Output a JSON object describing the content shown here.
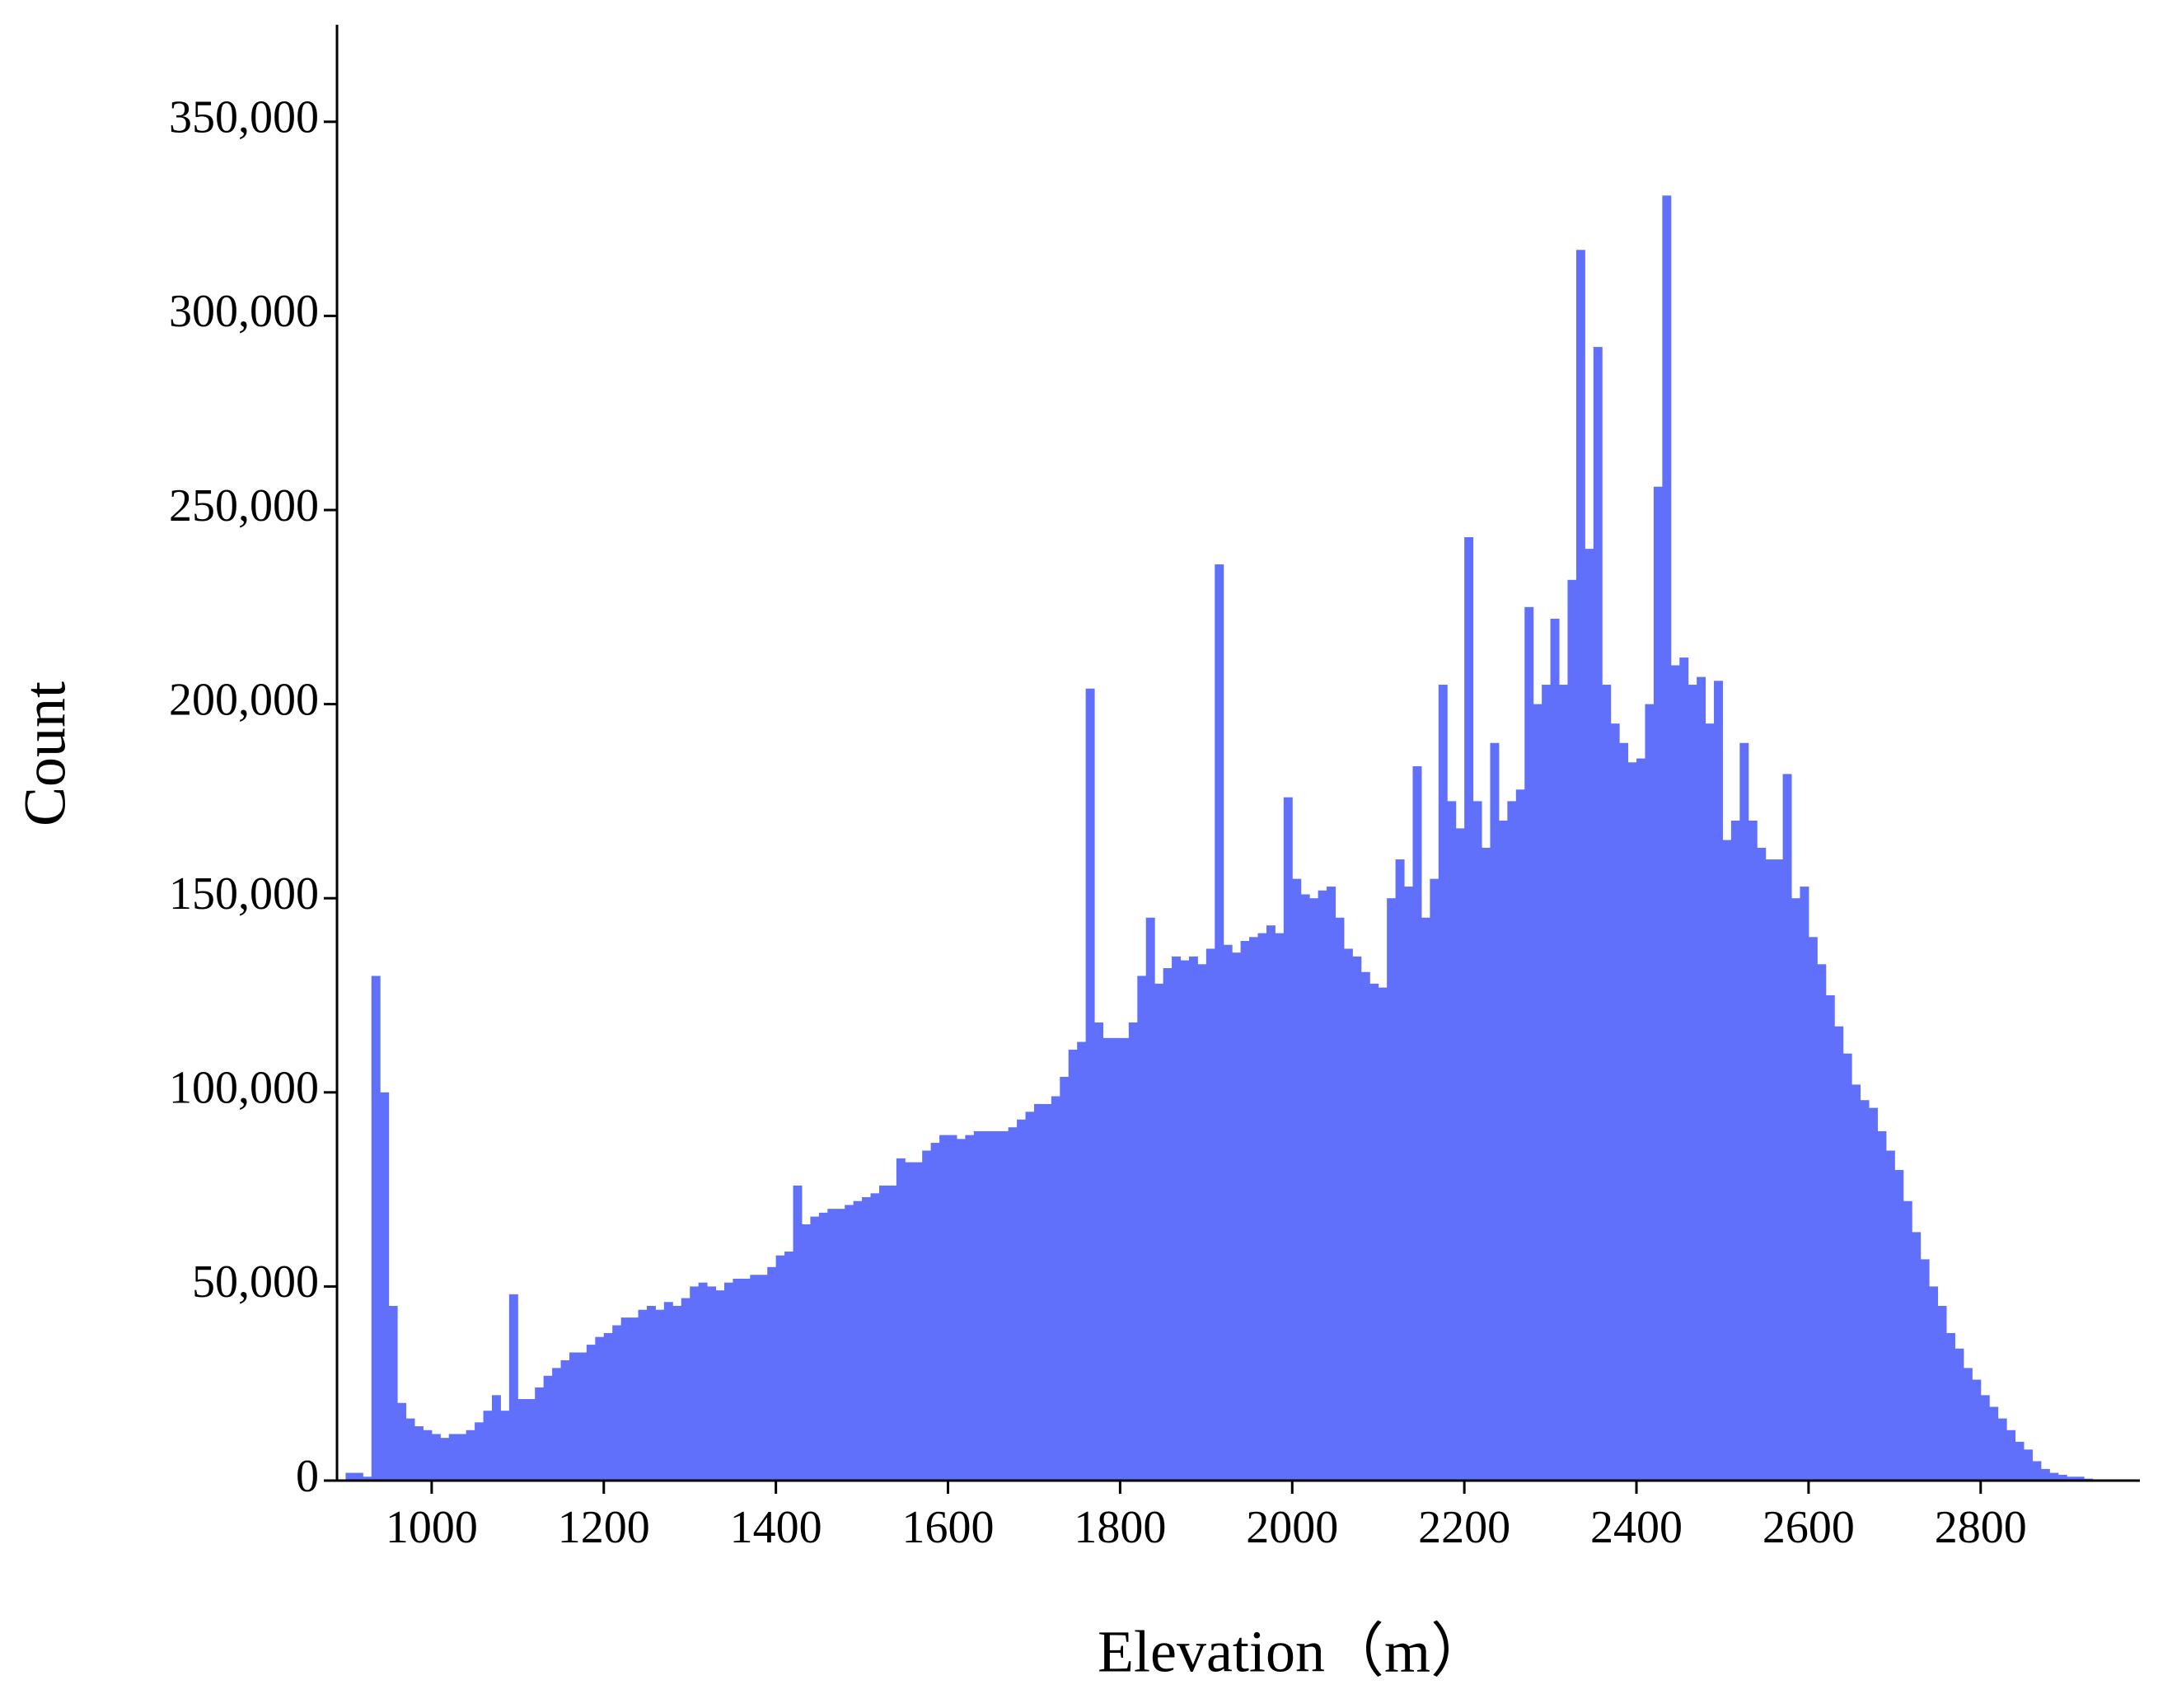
{
  "chart_data": {
    "type": "histogram",
    "xlabel": "Elevation（m）",
    "ylabel": "Count",
    "color": "#6070fb",
    "bins": [
      900,
      910,
      920,
      930,
      940,
      950,
      960,
      970,
      980,
      990,
      1000,
      1010,
      1020,
      1030,
      1040,
      1050,
      1060,
      1070,
      1080,
      1090,
      1100,
      1110,
      1120,
      1130,
      1140,
      1150,
      1160,
      1170,
      1180,
      1190,
      1200,
      1210,
      1220,
      1230,
      1240,
      1250,
      1260,
      1270,
      1280,
      1290,
      1300,
      1310,
      1320,
      1330,
      1340,
      1350,
      1360,
      1370,
      1380,
      1390,
      1400,
      1410,
      1420,
      1430,
      1440,
      1450,
      1460,
      1470,
      1480,
      1490,
      1500,
      1510,
      1520,
      1530,
      1540,
      1550,
      1560,
      1570,
      1580,
      1590,
      1600,
      1610,
      1620,
      1630,
      1640,
      1650,
      1660,
      1670,
      1680,
      1690,
      1700,
      1710,
      1720,
      1730,
      1740,
      1750,
      1760,
      1770,
      1780,
      1790,
      1800,
      1810,
      1820,
      1830,
      1840,
      1850,
      1860,
      1870,
      1880,
      1890,
      1900,
      1910,
      1920,
      1930,
      1940,
      1950,
      1960,
      1970,
      1980,
      1990,
      2000,
      2010,
      2020,
      2030,
      2040,
      2050,
      2060,
      2070,
      2080,
      2090,
      2100,
      2110,
      2120,
      2130,
      2140,
      2150,
      2160,
      2170,
      2180,
      2190,
      2200,
      2210,
      2220,
      2230,
      2240,
      2250,
      2260,
      2270,
      2280,
      2290,
      2300,
      2310,
      2320,
      2330,
      2340,
      2350,
      2360,
      2370,
      2380,
      2390,
      2400,
      2410,
      2420,
      2430,
      2440,
      2450,
      2460,
      2470,
      2480,
      2490,
      2500,
      2510,
      2520,
      2530,
      2540,
      2550,
      2560,
      2570,
      2580,
      2590,
      2600,
      2610,
      2620,
      2630,
      2640,
      2650,
      2660,
      2670,
      2680,
      2690,
      2700,
      2710,
      2720,
      2730,
      2740,
      2750,
      2760,
      2770,
      2780,
      2790,
      2800,
      2810,
      2820,
      2830,
      2840,
      2850,
      2860,
      2870,
      2880,
      2890,
      2900,
      2910,
      2920,
      2930
    ],
    "values": [
      2000,
      2000,
      1000,
      130000,
      100000,
      45000,
      20000,
      16000,
      14000,
      13000,
      12000,
      11000,
      12000,
      12000,
      13000,
      15000,
      18000,
      22000,
      18000,
      48000,
      21000,
      21000,
      24000,
      27000,
      29000,
      31000,
      33000,
      33000,
      35000,
      37000,
      38000,
      40000,
      42000,
      42000,
      44000,
      45000,
      44000,
      46000,
      45000,
      47000,
      50000,
      51000,
      50000,
      49000,
      51000,
      52000,
      52000,
      53000,
      53000,
      55000,
      58000,
      59000,
      76000,
      66000,
      68000,
      69000,
      70000,
      70000,
      71000,
      72000,
      73000,
      74000,
      76000,
      76000,
      83000,
      82000,
      82000,
      85000,
      87000,
      89000,
      89000,
      88000,
      89000,
      90000,
      90000,
      90000,
      90000,
      91000,
      93000,
      95000,
      97000,
      97000,
      99000,
      104000,
      111000,
      113000,
      204000,
      118000,
      114000,
      114000,
      114000,
      118000,
      130000,
      145000,
      128000,
      132000,
      135000,
      134000,
      135000,
      133000,
      137000,
      236000,
      138000,
      136000,
      139000,
      140000,
      141000,
      143000,
      141000,
      176000,
      155000,
      151000,
      150000,
      152000,
      153000,
      145000,
      137000,
      135000,
      131000,
      128000,
      127000,
      150000,
      160000,
      153000,
      184000,
      145000,
      155000,
      205000,
      175000,
      168000,
      243000,
      175000,
      163000,
      190000,
      170000,
      175000,
      178000,
      225000,
      200000,
      205000,
      222000,
      205000,
      232000,
      317000,
      240000,
      292000,
      205000,
      195000,
      190000,
      185000,
      186000,
      200000,
      256000,
      331000,
      210000,
      212000,
      205000,
      207000,
      195000,
      206000,
      165000,
      170000,
      190000,
      170000,
      163000,
      160000,
      160000,
      182000,
      150000,
      153000,
      140000,
      133000,
      125000,
      117000,
      110000,
      102000,
      98000,
      96000,
      90000,
      85000,
      80000,
      72000,
      64000,
      57000,
      50000,
      45000,
      38000,
      34000,
      29000,
      26000,
      22000,
      19000,
      16000,
      13000,
      10000,
      8000,
      5000,
      3000,
      2000,
      1500,
      1000,
      1000,
      500
    ],
    "xlim": [
      890,
      2985
    ],
    "xticks": [
      1000,
      1200,
      1400,
      1600,
      1800,
      2000,
      2200,
      2400,
      2600,
      2800
    ],
    "ylim": [
      0,
      375000
    ],
    "yticks": [
      0,
      {
        "value": 50000,
        "label": "50,000"
      },
      {
        "value": 100000,
        "label": "100,000"
      },
      {
        "value": 150000,
        "label": "150,000"
      },
      {
        "value": 200000,
        "label": "200,000"
      },
      {
        "value": 250000,
        "label": "250,000"
      },
      {
        "value": 300000,
        "label": "300,000"
      },
      {
        "value": 350000,
        "label": "350,000"
      }
    ]
  }
}
